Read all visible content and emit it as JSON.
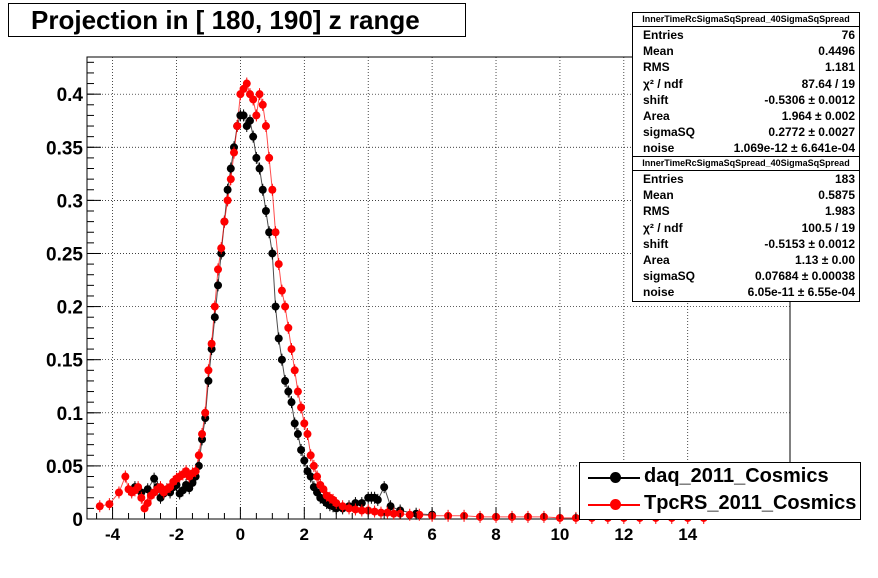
{
  "title": "Projection in [ 180, 190] z range",
  "stats": [
    {
      "header": "InnerTimeRcSigmaSqSpread_40SigmaSqSpread",
      "rows": [
        {
          "label": "Entries",
          "value": "76"
        },
        {
          "label": "Mean",
          "value": "0.4496"
        },
        {
          "label": "RMS",
          "value": "1.181"
        },
        {
          "label": "χ² / ndf",
          "value": "87.64 / 19"
        },
        {
          "label": "shift",
          "value": "-0.5306 ± 0.0012"
        },
        {
          "label": "Area",
          "value": "1.964 ± 0.002"
        },
        {
          "label": "sigmaSQ",
          "value": "0.2772 ± 0.0027"
        },
        {
          "label": "noise",
          "value": "1.069e-12 ± 6.641e-04"
        }
      ]
    },
    {
      "header": "InnerTimeRcSigmaSqSpread_40SigmaSqSpread",
      "rows": [
        {
          "label": "Entries",
          "value": "183"
        },
        {
          "label": "Mean",
          "value": "0.5875"
        },
        {
          "label": "RMS",
          "value": "1.983"
        },
        {
          "label": "χ² / ndf",
          "value": "100.5 / 19"
        },
        {
          "label": "shift",
          "value": "-0.5153 ± 0.0012"
        },
        {
          "label": "Area",
          "value": "1.13 ± 0.00"
        },
        {
          "label": "sigmaSQ",
          "value": "0.07684 ± 0.00038"
        },
        {
          "label": "noise",
          "value": "6.05e-11 ± 6.55e-04"
        }
      ]
    }
  ],
  "legend": [
    {
      "label": "daq_2011_Cosmics",
      "color": "#000000"
    },
    {
      "label": "TpcRS_2011_Cosmics",
      "color": "#ff0000"
    }
  ],
  "chart_data": {
    "type": "scatter",
    "title": "Projection in [ 180, 190] z range",
    "xlim": [
      -4.8,
      17.2
    ],
    "ylim": [
      0,
      0.435
    ],
    "x_ticks": [
      -4,
      -2,
      0,
      2,
      4,
      6,
      8,
      10,
      12,
      14
    ],
    "x_tick_labels": [
      "-4",
      "-2",
      "0",
      "2",
      "4",
      "6",
      "8",
      "10",
      "12",
      "14"
    ],
    "y_ticks": [
      0,
      0.05,
      0.1,
      0.15,
      0.2,
      0.25,
      0.3,
      0.35,
      0.4
    ],
    "y_tick_labels": [
      "0",
      "0.05",
      "0.1",
      "0.15",
      "0.2",
      "0.25",
      "0.3",
      "0.35",
      "0.4"
    ],
    "grid": true,
    "legend_position": "bottom-right",
    "series": [
      {
        "name": "daq_2011_Cosmics",
        "color": "#000000",
        "x": [
          -3.3,
          -3.1,
          -2.9,
          -2.7,
          -2.6,
          -2.5,
          -2.4,
          -2.3,
          -2.2,
          -2.1,
          -2.0,
          -1.9,
          -1.8,
          -1.7,
          -1.6,
          -1.5,
          -1.4,
          -1.3,
          -1.2,
          -1.1,
          -1.0,
          -0.9,
          -0.8,
          -0.7,
          -0.6,
          -0.5,
          -0.4,
          -0.3,
          -0.2,
          -0.1,
          0.0,
          0.1,
          0.2,
          0.3,
          0.4,
          0.5,
          0.6,
          0.7,
          0.8,
          0.9,
          1.0,
          1.1,
          1.2,
          1.3,
          1.4,
          1.5,
          1.6,
          1.7,
          1.8,
          1.9,
          2.0,
          2.1,
          2.2,
          2.3,
          2.4,
          2.5,
          2.6,
          2.7,
          2.8,
          2.9,
          3.0,
          3.2,
          3.4,
          3.6,
          3.8,
          4.0,
          4.1,
          4.2,
          4.3,
          4.5,
          4.7,
          5.0,
          5.5,
          6.0
        ],
        "y": [
          0.03,
          0.025,
          0.028,
          0.038,
          0.03,
          0.02,
          0.024,
          0.028,
          0.025,
          0.03,
          0.032,
          0.024,
          0.027,
          0.032,
          0.029,
          0.034,
          0.04,
          0.05,
          0.075,
          0.095,
          0.13,
          0.16,
          0.19,
          0.22,
          0.25,
          0.28,
          0.31,
          0.33,
          0.35,
          0.37,
          0.38,
          0.38,
          0.37,
          0.375,
          0.36,
          0.34,
          0.33,
          0.31,
          0.29,
          0.27,
          0.25,
          0.2,
          0.17,
          0.15,
          0.13,
          0.12,
          0.11,
          0.09,
          0.08,
          0.065,
          0.055,
          0.045,
          0.04,
          0.03,
          0.025,
          0.02,
          0.018,
          0.015,
          0.013,
          0.012,
          0.01,
          0.01,
          0.012,
          0.015,
          0.015,
          0.02,
          0.02,
          0.02,
          0.018,
          0.03,
          0.012,
          0.008,
          0.005,
          0.004
        ]
      },
      {
        "name": "TpcRS_2011_Cosmics",
        "color": "#ff0000",
        "x": [
          -4.4,
          -4.1,
          -3.8,
          -3.6,
          -3.5,
          -3.4,
          -3.3,
          -3.2,
          -3.1,
          -3.0,
          -2.9,
          -2.8,
          -2.7,
          -2.6,
          -2.5,
          -2.4,
          -2.3,
          -2.2,
          -2.1,
          -2.0,
          -1.9,
          -1.8,
          -1.7,
          -1.6,
          -1.5,
          -1.4,
          -1.3,
          -1.2,
          -1.1,
          -1.0,
          -0.9,
          -0.8,
          -0.7,
          -0.6,
          -0.5,
          -0.4,
          -0.3,
          -0.2,
          -0.1,
          0.0,
          0.1,
          0.2,
          0.3,
          0.4,
          0.5,
          0.6,
          0.7,
          0.8,
          0.9,
          1.0,
          1.1,
          1.2,
          1.3,
          1.4,
          1.5,
          1.6,
          1.7,
          1.8,
          1.9,
          2.0,
          2.1,
          2.2,
          2.3,
          2.4,
          2.5,
          2.6,
          2.7,
          2.8,
          2.9,
          3.0,
          3.2,
          3.4,
          3.6,
          3.8,
          4.0,
          4.2,
          4.4,
          4.6,
          4.8,
          5.0,
          5.3,
          5.6,
          6.0,
          6.5,
          7.0,
          7.5,
          8.0,
          8.5,
          9.0,
          9.5,
          10.0,
          10.5,
          11.0,
          11.5,
          12.0,
          12.5,
          13.0,
          13.5,
          14.0,
          14.5
        ],
        "y": [
          0.012,
          0.014,
          0.025,
          0.04,
          0.028,
          0.025,
          0.027,
          0.03,
          0.02,
          0.01,
          0.015,
          0.022,
          0.025,
          0.028,
          0.03,
          0.025,
          0.028,
          0.03,
          0.035,
          0.038,
          0.04,
          0.042,
          0.045,
          0.04,
          0.043,
          0.045,
          0.06,
          0.08,
          0.1,
          0.14,
          0.165,
          0.2,
          0.235,
          0.255,
          0.28,
          0.3,
          0.32,
          0.345,
          0.37,
          0.4,
          0.405,
          0.41,
          0.4,
          0.395,
          0.38,
          0.4,
          0.39,
          0.37,
          0.34,
          0.31,
          0.27,
          0.24,
          0.215,
          0.2,
          0.18,
          0.16,
          0.14,
          0.12,
          0.105,
          0.09,
          0.08,
          0.06,
          0.05,
          0.04,
          0.032,
          0.028,
          0.022,
          0.02,
          0.018,
          0.015,
          0.012,
          0.01,
          0.009,
          0.008,
          0.008,
          0.007,
          0.006,
          0.006,
          0.005,
          0.005,
          0.004,
          0.004,
          0.003,
          0.003,
          0.003,
          0.002,
          0.002,
          0.002,
          0.002,
          0.002,
          0.001,
          0.001,
          0.001,
          0.001,
          0.001,
          0.001,
          0.001,
          0.001,
          0.001,
          0.001
        ]
      }
    ]
  }
}
